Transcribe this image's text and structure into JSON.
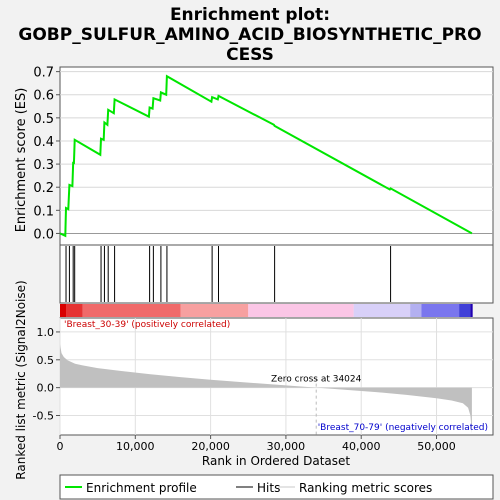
{
  "chart_data": {
    "type": "line",
    "title_line1": "Enrichment plot:",
    "title_line2": "GOBP_SULFUR_AMINO_ACID_BIOSYNTHETIC_PRO",
    "title_line3": "CESS",
    "es_panel": {
      "ylabel": "Enrichment score (ES)",
      "ylim": [
        -0.05,
        0.72
      ],
      "yticks": [
        "0.0",
        "0.1",
        "0.2",
        "0.3",
        "0.4",
        "0.5",
        "0.6",
        "0.7"
      ],
      "ytick_values": [
        0.0,
        0.1,
        0.2,
        0.3,
        0.4,
        0.5,
        0.6,
        0.7
      ],
      "grid": true,
      "line_color": "#00e600",
      "es_curve": {
        "x": [
          0,
          700,
          800,
          1100,
          1250,
          1650,
          1750,
          1850,
          1950,
          5350,
          5450,
          5800,
          5900,
          6300,
          6400,
          7150,
          7250,
          11800,
          11900,
          12300,
          12400,
          13300,
          13400,
          14100,
          14200,
          20100,
          20200,
          20950,
          21050,
          28400,
          28500,
          43800,
          43900,
          54700
        ],
        "y": [
          0.0,
          -0.01,
          0.11,
          0.105,
          0.21,
          0.205,
          0.31,
          0.3,
          0.405,
          0.34,
          0.41,
          0.405,
          0.48,
          0.47,
          0.535,
          0.52,
          0.58,
          0.505,
          0.545,
          0.54,
          0.585,
          0.575,
          0.61,
          0.6,
          0.68,
          0.57,
          0.59,
          0.58,
          0.595,
          0.47,
          0.465,
          0.19,
          0.195,
          0.0
        ]
      }
    },
    "hits": [
      800,
      1250,
      1750,
      1950,
      5450,
      5900,
      6400,
      7250,
      11900,
      12400,
      13400,
      14200,
      20200,
      21050,
      28500,
      43900
    ],
    "metric_panel": {
      "ylabel": "Ranked list metric (Signal2Noise)",
      "xlabel": "Rank in Ordered Dataset",
      "ylim": [
        -0.85,
        1.25
      ],
      "yticks": [
        "-0.5",
        "0.0",
        "0.5",
        "1.0"
      ],
      "ytick_values": [
        -0.5,
        0.0,
        0.5,
        1.0
      ],
      "xlim": [
        0,
        57500
      ],
      "xticks": [
        "0",
        "10,000",
        "20,000",
        "30,000",
        "40,000",
        "50,000"
      ],
      "xtick_values": [
        0,
        10000,
        20000,
        30000,
        40000,
        50000
      ],
      "zero_cross_label": "Zero cross at 34024",
      "zero_cross": 34024,
      "positive_label": "'Breast_30-39' (positively correlated)",
      "negative_label": "'Breast_70-79' (negatively correlated)",
      "metric_curve": {
        "x": [
          0,
          200,
          500,
          1000,
          2000,
          3000,
          5000,
          8000,
          12000,
          16000,
          20000,
          25000,
          30000,
          34024,
          38000,
          42000,
          46000,
          50000,
          52000,
          53500,
          54200,
          54500,
          54700
        ],
        "y": [
          0.78,
          0.62,
          0.55,
          0.49,
          0.43,
          0.4,
          0.35,
          0.3,
          0.24,
          0.19,
          0.14,
          0.09,
          0.04,
          0.0,
          -0.04,
          -0.08,
          -0.13,
          -0.19,
          -0.23,
          -0.28,
          -0.36,
          -0.5,
          -0.82
        ]
      }
    },
    "legend": {
      "items": [
        "Enrichment profile",
        "Hits",
        "Ranking metric scores"
      ],
      "colors": [
        "#00e600",
        "#000000",
        "#c8c8c8"
      ]
    },
    "colorbar_colors": [
      "#d90000",
      "#e63333",
      "#f06a6a",
      "#f7a0a0",
      "#fbc6e6",
      "#d8d0f8",
      "#b3b0f0",
      "#7a76ee",
      "#4040d8",
      "#2000b0"
    ]
  }
}
